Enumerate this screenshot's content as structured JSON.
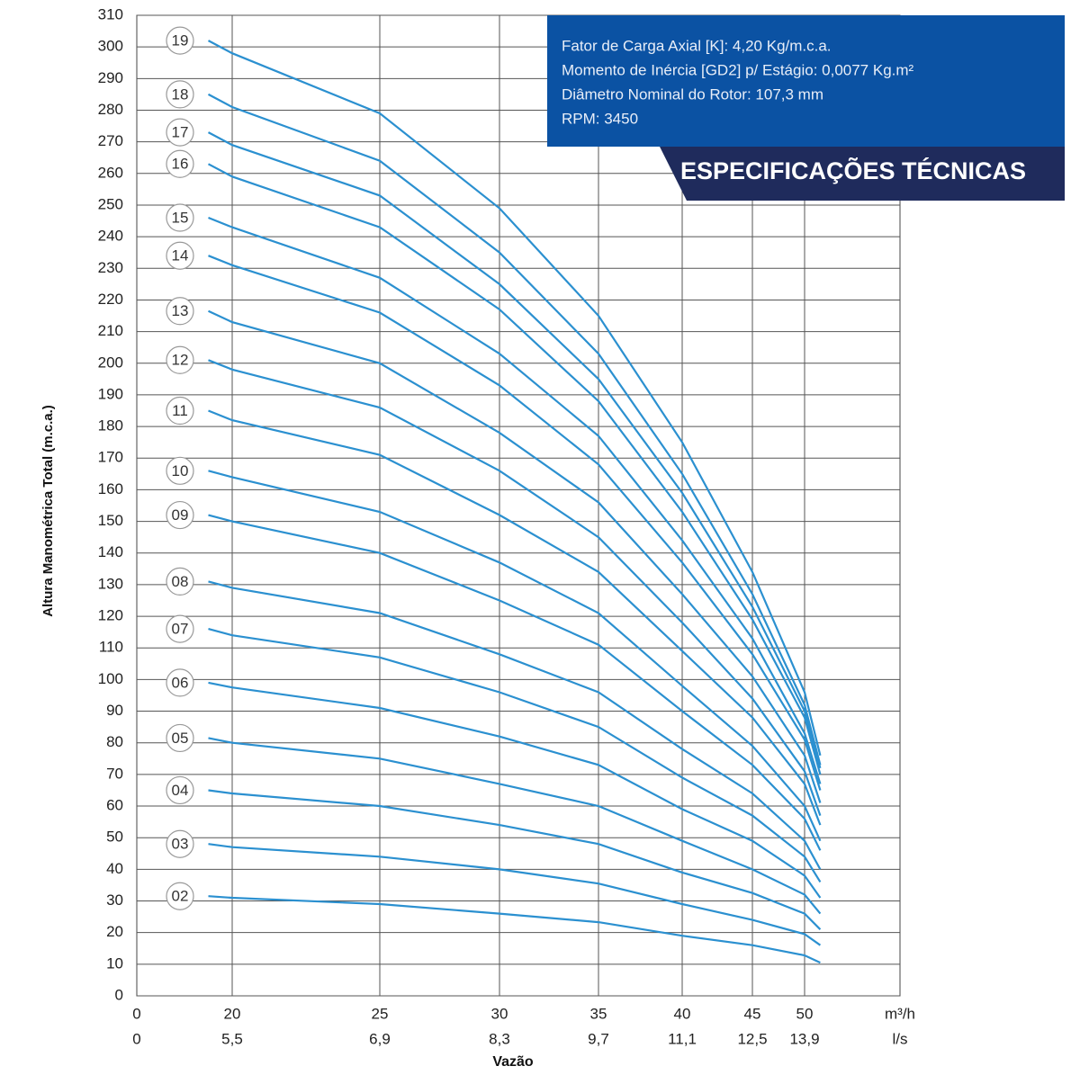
{
  "chart_data": {
    "type": "line",
    "y_label": "Altura Manométrica Total (m.c.a.)",
    "x_label": "Vazão",
    "x_unit": "m³/h",
    "x2_unit": "l/s",
    "annotations": [
      "Fator de Carga Axial [K]: 4,20 Kg/m.c.a.",
      "Momento de Inércia [GD2] p/ Estágio: 0,0077 Kg.m²",
      "Diâmetro Nominal do Rotor: 107,3 mm",
      "RPM: 3450"
    ],
    "badge": "ESPECIFICAÇÕES TÉCNICAS",
    "x": [
      15,
      20,
      25,
      30,
      35,
      40,
      45,
      50,
      51.5
    ],
    "xticks": [
      0,
      20,
      25,
      30,
      35,
      40,
      45,
      50
    ],
    "x2ticks": [
      0,
      {
        "value": 5.5,
        "label": "5,5"
      },
      {
        "value": 6.9,
        "label": "6,9"
      },
      {
        "value": 8.3,
        "label": "8,3"
      },
      {
        "value": 9.7,
        "label": "9,7"
      },
      {
        "value": 11.1,
        "label": "11,1"
      },
      {
        "value": 12.5,
        "label": "12,5"
      },
      {
        "value": 13.9,
        "label": "13,9"
      }
    ],
    "ylim": [
      0,
      310
    ],
    "yticks": [
      0,
      10,
      20,
      30,
      40,
      50,
      60,
      70,
      80,
      90,
      100,
      110,
      120,
      130,
      140,
      150,
      160,
      170,
      180,
      190,
      200,
      210,
      220,
      230,
      240,
      250,
      260,
      270,
      280,
      290,
      300,
      310
    ],
    "grid": true,
    "series": [
      {
        "name": "19",
        "color": "#2b90d0",
        "values": [
          302,
          298,
          279,
          249,
          215,
          175,
          134,
          96,
          76
        ]
      },
      {
        "name": "18",
        "color": "#2b90d0",
        "values": [
          285,
          281,
          264,
          235,
          203,
          165,
          127,
          92,
          73
        ]
      },
      {
        "name": "17",
        "color": "#2b90d0",
        "values": [
          273,
          269,
          253,
          225,
          195,
          159,
          123,
          90,
          72
        ]
      },
      {
        "name": "16",
        "color": "#2b90d0",
        "values": [
          263,
          259,
          243,
          217,
          188,
          153,
          119,
          88,
          70
        ]
      },
      {
        "name": "15",
        "color": "#2b90d0",
        "values": [
          246,
          243,
          227,
          203,
          177,
          144,
          113,
          83,
          67
        ]
      },
      {
        "name": "14",
        "color": "#2b90d0",
        "values": [
          234,
          231,
          216,
          193,
          168,
          137,
          108,
          81,
          65
        ]
      },
      {
        "name": "13",
        "color": "#2b90d0",
        "values": [
          216.5,
          213,
          200,
          178,
          156,
          127,
          101,
          76,
          61
        ]
      },
      {
        "name": "12",
        "color": "#2b90d0",
        "values": [
          201,
          198,
          186,
          166,
          145,
          118,
          94,
          71,
          57
        ]
      },
      {
        "name": "11",
        "color": "#2b90d0",
        "values": [
          185,
          182,
          171,
          152,
          134,
          109,
          88,
          67,
          54
        ]
      },
      {
        "name": "10",
        "color": "#2b90d0",
        "values": [
          166,
          164,
          153,
          137,
          121,
          98,
          79,
          60,
          49
        ]
      },
      {
        "name": "09",
        "color": "#2b90d0",
        "values": [
          152,
          150,
          140,
          125,
          111,
          90,
          73,
          56,
          46
        ]
      },
      {
        "name": "08",
        "color": "#2b90d0",
        "values": [
          131,
          129,
          121,
          108,
          96,
          78,
          64,
          49,
          40
        ]
      },
      {
        "name": "07",
        "color": "#2b90d0",
        "values": [
          116,
          114,
          107,
          96,
          85,
          69,
          57,
          44,
          36
        ]
      },
      {
        "name": "06",
        "color": "#2b90d0",
        "values": [
          99,
          97.5,
          91,
          82,
          73,
          59,
          49,
          38,
          31
        ]
      },
      {
        "name": "05",
        "color": "#2b90d0",
        "values": [
          81.5,
          80,
          75,
          67,
          60,
          49,
          40,
          32,
          26
        ]
      },
      {
        "name": "04",
        "color": "#2b90d0",
        "values": [
          65,
          64,
          60,
          54,
          48,
          39,
          32.5,
          26,
          21
        ]
      },
      {
        "name": "03",
        "color": "#2b90d0",
        "values": [
          48,
          47,
          44,
          40,
          35.5,
          29,
          24,
          19.5,
          16
        ]
      },
      {
        "name": "02",
        "color": "#2b90d0",
        "values": [
          31.5,
          31,
          29,
          26,
          23.3,
          19,
          16,
          12.8,
          10.5
        ]
      }
    ]
  }
}
